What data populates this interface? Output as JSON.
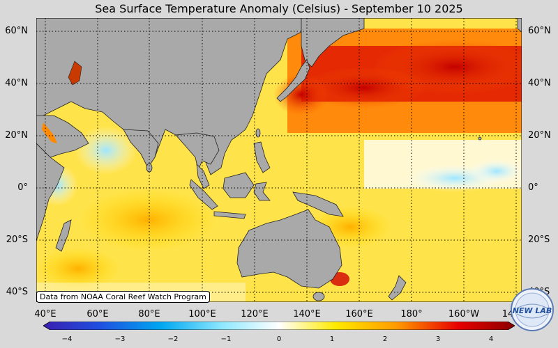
{
  "title": "Sea Surface Temperature Anomaly (Celsius) - September 10 2025",
  "credit": "Data from NOAA Coral Reef Watch Program",
  "latitudes_left": [
    "60°N",
    "40°N",
    "20°N",
    "0°",
    "20°S",
    "40°S"
  ],
  "latitudes_right": [
    "60°N",
    "40°N",
    "20°N",
    "0°",
    "20°S",
    "40°S"
  ],
  "longitudes": [
    "40°E",
    "60°E",
    "80°E",
    "100°E",
    "120°E",
    "140°E",
    "160°E",
    "180°",
    "160°W",
    "14"
  ],
  "colorbar": {
    "min": -4,
    "max": 4,
    "ticks": [
      "−4",
      "−3",
      "−2",
      "−1",
      "0",
      "1",
      "2",
      "3",
      "4"
    ]
  },
  "logo_text": "NEW LAB",
  "colors": {
    "land": "#a9a9a9",
    "background": "#d9d9d9",
    "cold": "#4a2cc0",
    "neutral": "#ffffff",
    "warm": "#f2c400",
    "hot": "#8b0000"
  }
}
